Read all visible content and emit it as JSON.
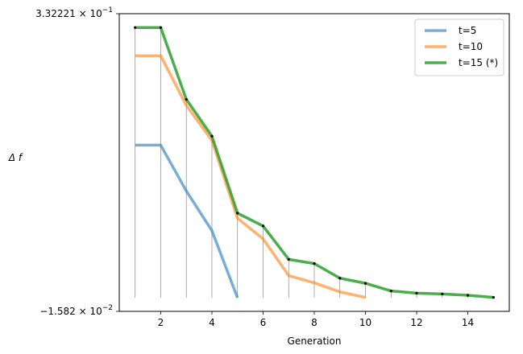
{
  "chart_data": {
    "type": "line",
    "xlabel": "Generation",
    "ylabel": "Δ f",
    "xlim": [
      0.38,
      15.62
    ],
    "ylim": [
      -0.01582,
      0.332221
    ],
    "xticks": [
      2,
      4,
      6,
      8,
      10,
      12,
      14
    ],
    "xtick_labels": [
      "2",
      "4",
      "6",
      "8",
      "10",
      "12",
      "14"
    ],
    "ytick_labels": [
      {
        "value": 0.332221,
        "mantissa": "3.32221",
        "sign": "",
        "exponent": "−1"
      },
      {
        "value": -0.01582,
        "mantissa": "1.582",
        "sign": "−",
        "exponent": "−2"
      }
    ],
    "series": [
      {
        "name": "t=5",
        "color": "#1f77b4",
        "x": [
          1,
          2,
          3,
          4,
          5
        ],
        "y": [
          0.1785,
          0.1785,
          0.125,
          0.0785,
          0.0
        ]
      },
      {
        "name": "t=10",
        "color": "#ff7f0e",
        "x": [
          1,
          2,
          3,
          4,
          5,
          6,
          7,
          8,
          9,
          10
        ],
        "y": [
          0.283,
          0.283,
          0.225,
          0.184,
          0.093,
          0.069,
          0.026,
          0.0175,
          0.007,
          0.0005
        ]
      },
      {
        "name": "t=15 (*)",
        "color": "#2ca02c",
        "x": [
          1,
          2,
          3,
          4,
          5,
          6,
          7,
          8,
          9,
          10,
          11,
          12,
          13,
          14,
          15
        ],
        "y": [
          0.316,
          0.316,
          0.232,
          0.189,
          0.099,
          0.084,
          0.045,
          0.04,
          0.023,
          0.017,
          0.008,
          0.0055,
          0.0045,
          0.003,
          0.0005
        ]
      }
    ],
    "marked_series": "t=15 (*)",
    "legend_loc": "top-right"
  }
}
